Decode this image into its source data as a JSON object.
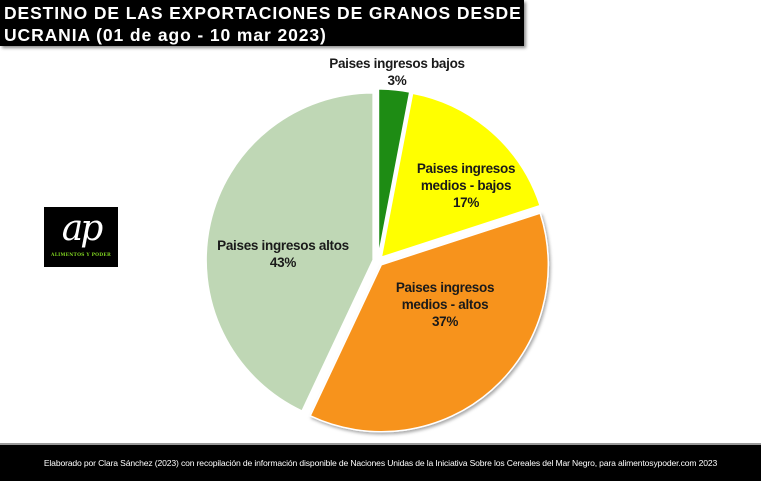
{
  "title": {
    "line1": "DESTINO DE LAS EXPORTACIONES DE GRANOS DESDE",
    "line2": "UCRANIA (01 de ago - 10 mar 2023)"
  },
  "logo": {
    "mark": "ap",
    "subtitle": "ALIMENTOS Y PODER"
  },
  "footer": {
    "text": "Elaborado por Clara Sánchez (2023) con recopilación de información  disponible de Naciones Unidas de la Iniciativa Sobre los Cereales del Mar Negro, para alimentosypoder.com  2023"
  },
  "chart_data": {
    "type": "pie",
    "title": "DESTINO DE LAS EXPORTACIONES DE GRANOS DESDE UCRANIA (01 de ago - 10 mar 2023)",
    "start_angle_deg": 0,
    "direction": "clockwise",
    "exploded": true,
    "slices": [
      {
        "label": "Paises ingresos bajos",
        "value": 3,
        "display": "3%",
        "color": "#1e8c14"
      },
      {
        "label": "Paises ingresos medios - bajos",
        "value": 17,
        "display": "17%",
        "color": "#ffff00"
      },
      {
        "label": "Paises ingresos medios - altos",
        "value": 37,
        "display": "37%",
        "color": "#f7931e"
      },
      {
        "label": "Paises ingresos altos",
        "value": 43,
        "display": "43%",
        "color": "#bfd7b5"
      }
    ],
    "labels": [
      {
        "line1": "Paises ingresos bajos",
        "line2": "3%"
      },
      {
        "line1": "Paises ingresos",
        "line2": "medios - bajos",
        "line3": "17%"
      },
      {
        "line1": "Paises ingresos",
        "line2": "medios - altos",
        "line3": "37%"
      },
      {
        "line1": "Paises ingresos altos",
        "line2": "43%"
      }
    ]
  }
}
